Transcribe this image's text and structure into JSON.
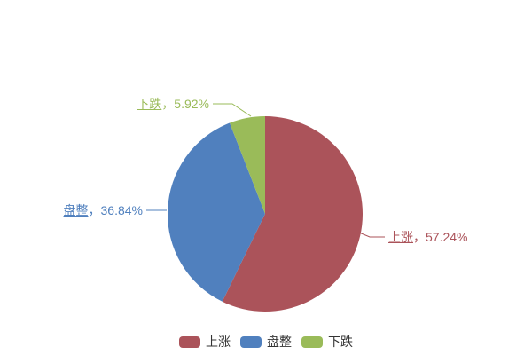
{
  "chart_data": {
    "type": "pie",
    "title": "",
    "start_angle": "top",
    "direction": "clockwise",
    "legend_position": "bottom-center",
    "label_separator": "，",
    "background": "#ffffff",
    "legend_text_color": "#333333",
    "slices": [
      {
        "name": "上涨",
        "value": 57.24,
        "percent_label": "57.24%",
        "color": "#AB535A"
      },
      {
        "name": "盘整",
        "value": 36.84,
        "percent_label": "36.84%",
        "color": "#5080BE"
      },
      {
        "name": "下跌",
        "value": 5.92,
        "percent_label": "5.92%",
        "color": "#9ABB59"
      }
    ],
    "legend": [
      "上涨",
      "盘整",
      "下跌"
    ]
  }
}
